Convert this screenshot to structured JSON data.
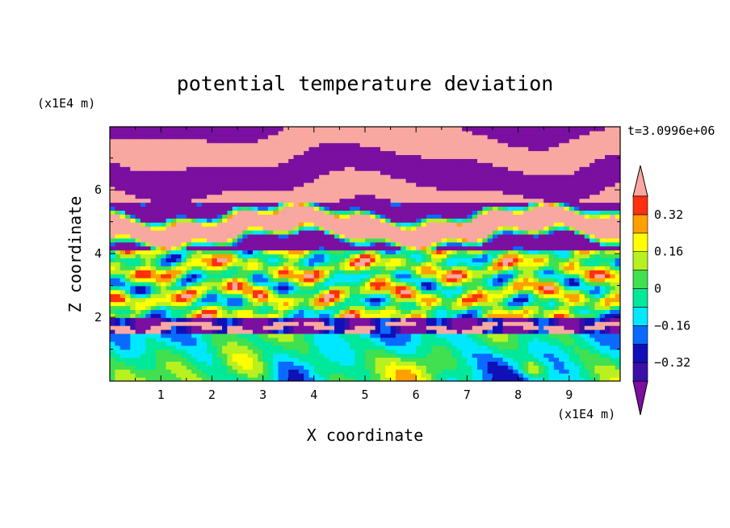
{
  "chart_data": {
    "type": "heatmap",
    "title": "potential temperature deviation",
    "xlabel": "X coordinate",
    "ylabel": "Z coordinate",
    "x_unit": "(x1E4 m)",
    "y_unit": "(x1E4 m)",
    "time_label": "t=3.0996e+06",
    "xlim": [
      0,
      10
    ],
    "ylim": [
      0,
      7.98
    ],
    "x_ticks": [
      "1",
      "2",
      "3",
      "4",
      "5",
      "6",
      "7",
      "8",
      "9"
    ],
    "y_ticks": [
      "2",
      "4",
      "6"
    ],
    "colorbar": {
      "tick_labels": [
        "0.32",
        "0.16",
        "0",
        "-0.16",
        "-0.32"
      ],
      "levels": [
        {
          "lo": -1.0,
          "hi": -0.4,
          "color": "#7a0fa0"
        },
        {
          "lo": -0.4,
          "hi": -0.32,
          "color": "#3a10a8"
        },
        {
          "lo": -0.32,
          "hi": -0.24,
          "color": "#1010b8"
        },
        {
          "lo": -0.24,
          "hi": -0.16,
          "color": "#0a6aff"
        },
        {
          "lo": -0.16,
          "hi": -0.08,
          "color": "#00e8ff"
        },
        {
          "lo": -0.08,
          "hi": 0.0,
          "color": "#00e89a"
        },
        {
          "lo": 0.0,
          "hi": 0.08,
          "color": "#40e050"
        },
        {
          "lo": 0.08,
          "hi": 0.16,
          "color": "#b8f020"
        },
        {
          "lo": 0.16,
          "hi": 0.24,
          "color": "#ffff00"
        },
        {
          "lo": 0.24,
          "hi": 0.32,
          "color": "#ffa000"
        },
        {
          "lo": 0.32,
          "hi": 0.4,
          "color": "#ff3010"
        },
        {
          "lo": 0.4,
          "hi": 1.0,
          "color": "#f8a8a0"
        }
      ]
    }
  }
}
